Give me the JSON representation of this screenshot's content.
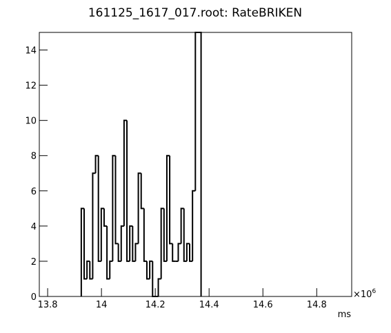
{
  "chart_data": {
    "type": "histogram",
    "title": "161125_1617_017.root: RateBRIKEN",
    "x_label": "ms",
    "x_multiplier": "×10",
    "x_exponent": "6",
    "bins": [
      13.925,
      13.9356,
      13.9462,
      13.9568,
      13.9674,
      13.978,
      13.9886,
      13.9992,
      14.0098,
      14.0204,
      14.031,
      14.0416,
      14.0522,
      14.0628,
      14.0734,
      14.084,
      14.0946,
      14.1052,
      14.1158,
      14.1264,
      14.137,
      14.1476,
      14.1582,
      14.1688,
      14.1794,
      14.19,
      14.2006,
      14.2112,
      14.2218,
      14.2324,
      14.243,
      14.2536,
      14.2642,
      14.2748,
      14.2854,
      14.296,
      14.3066,
      14.3172,
      14.3278,
      14.3384,
      14.349,
      14.3596,
      14.3702
    ],
    "values": [
      5,
      1,
      2,
      1,
      7,
      8,
      2,
      5,
      4,
      1,
      2,
      8,
      3,
      2,
      4,
      10,
      2,
      4,
      2,
      3,
      7,
      5,
      2,
      1,
      2,
      0,
      0,
      1,
      5,
      2,
      8,
      3,
      2,
      2,
      3,
      5,
      2,
      3,
      2,
      6,
      15,
      15
    ],
    "color": "#000000",
    "xlim": [
      13.769,
      14.93
    ],
    "xticks": [
      13.8,
      14,
      14.2,
      14.4,
      14.6,
      14.8
    ],
    "ylim": [
      0,
      15
    ],
    "yticks": [
      0,
      2,
      4,
      6,
      8,
      10,
      12,
      14
    ]
  }
}
